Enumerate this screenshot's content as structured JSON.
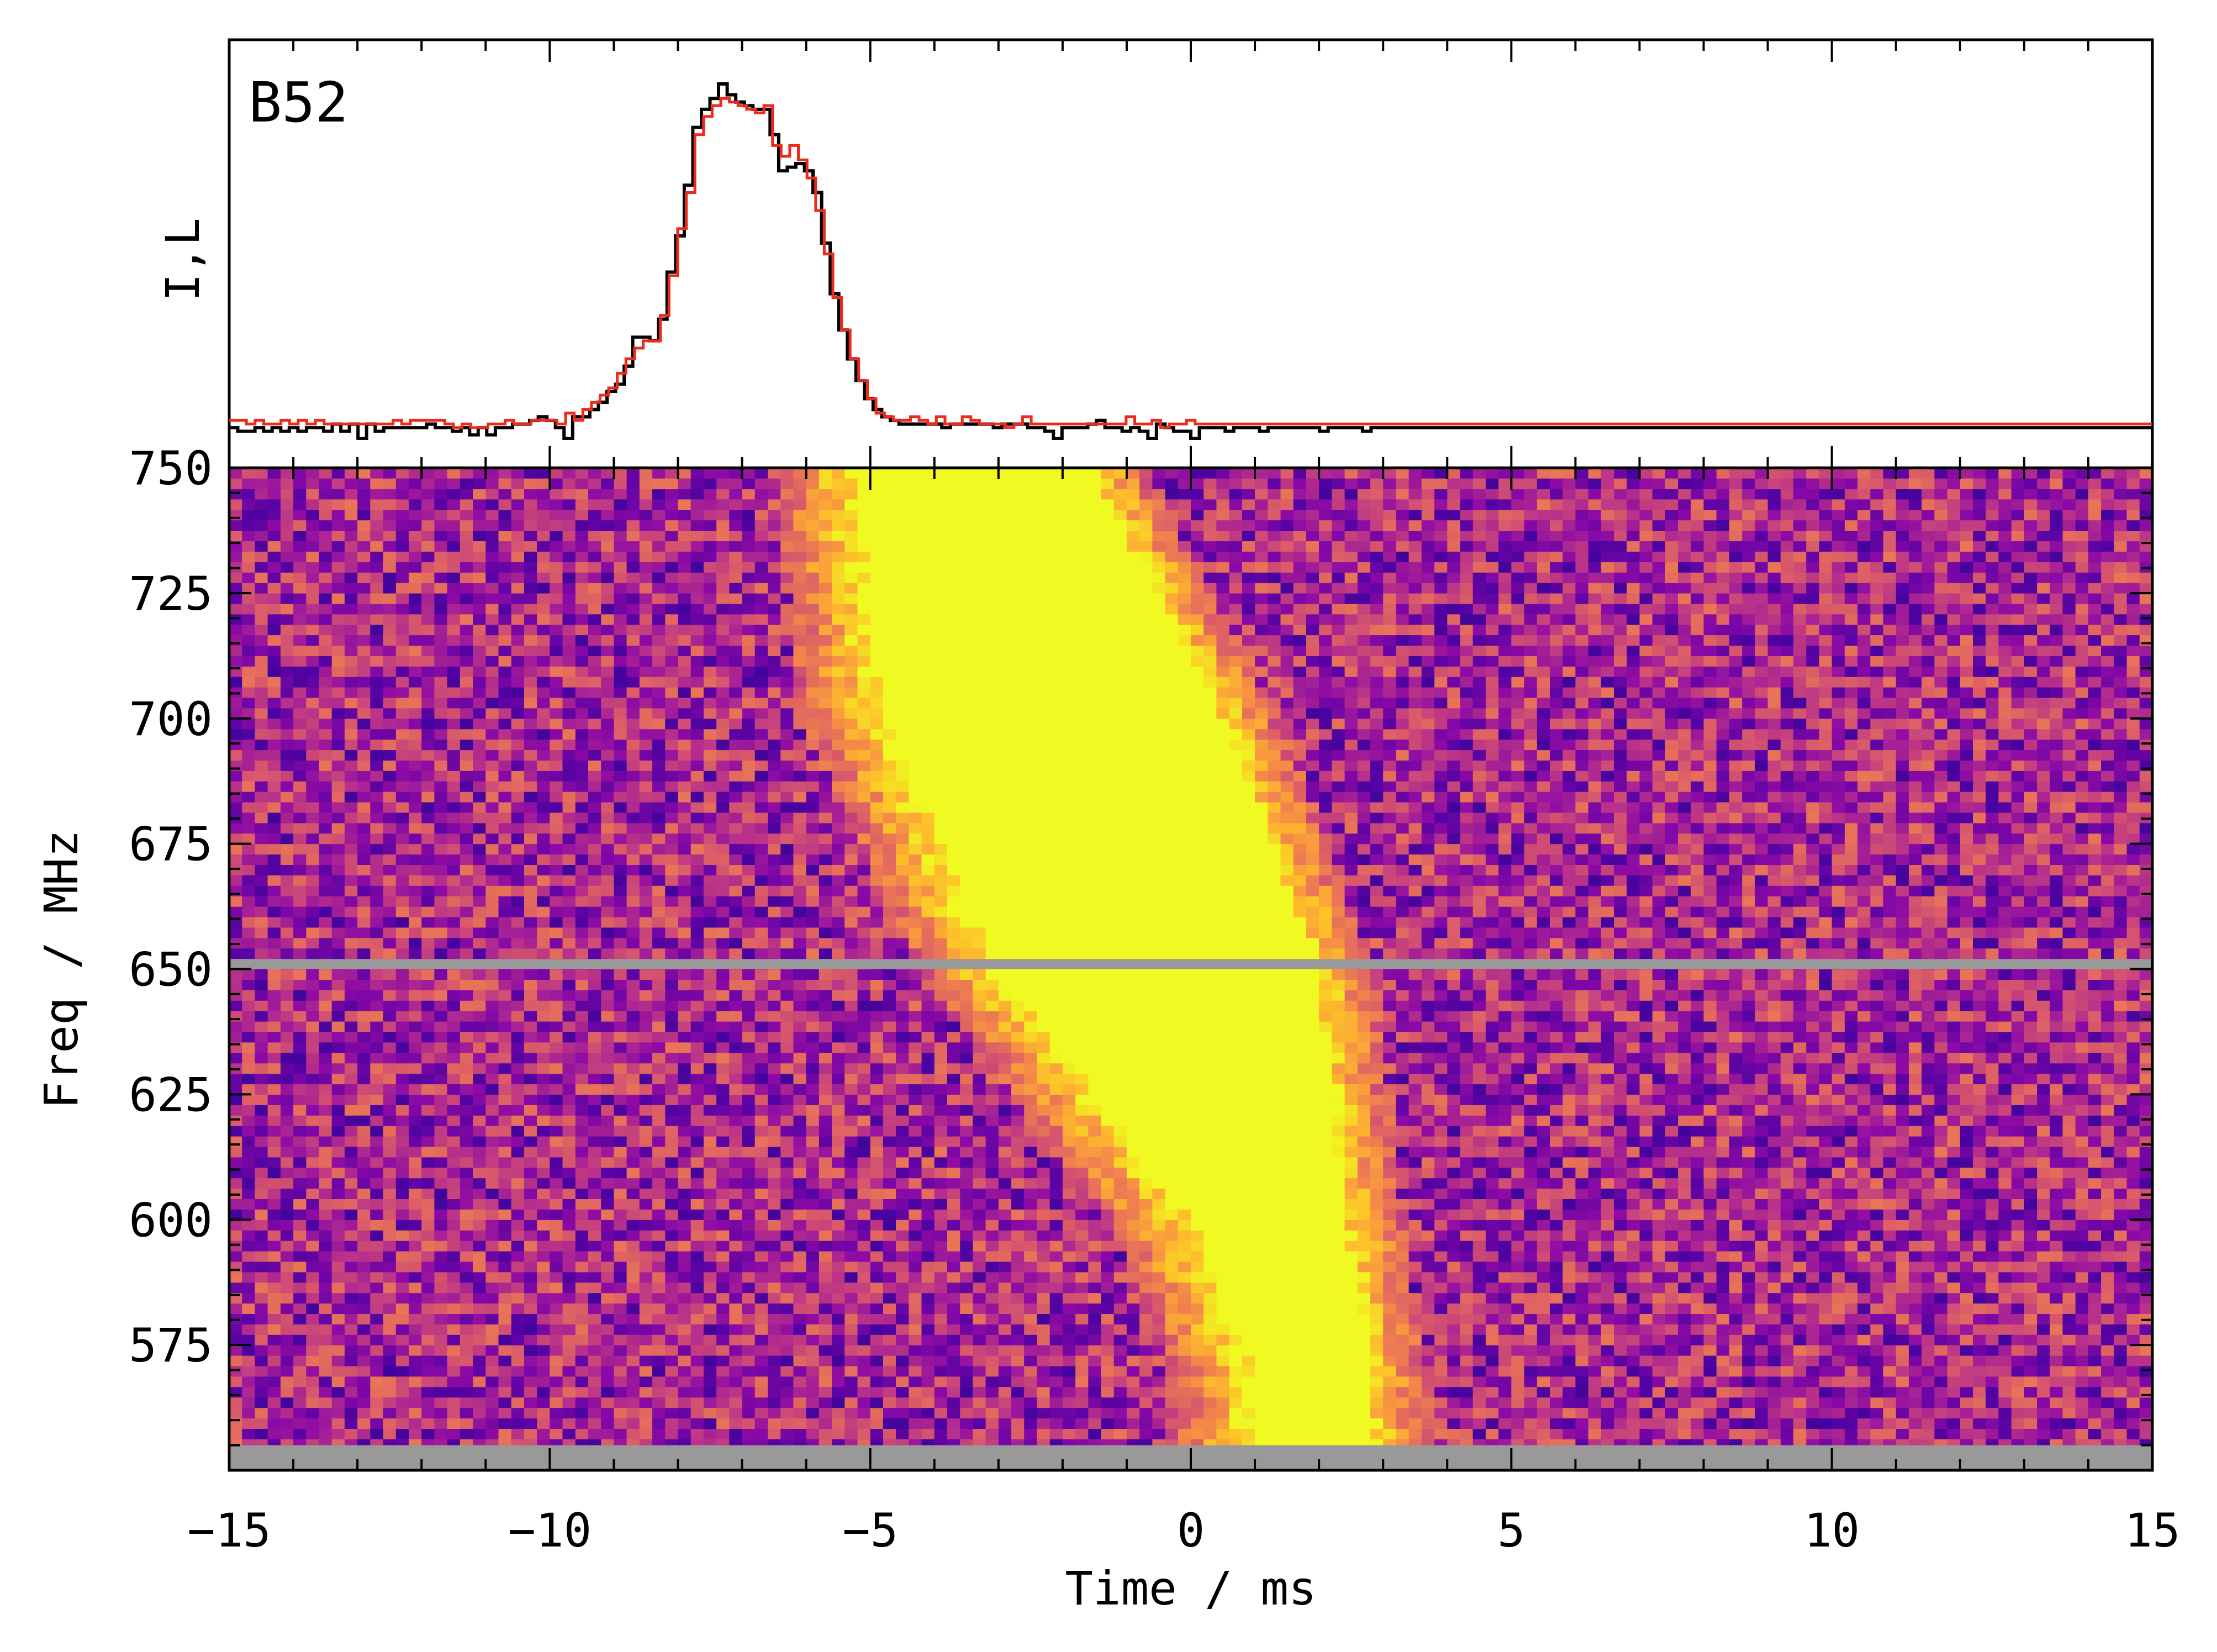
{
  "chart_data": [
    {
      "type": "line",
      "panel": "profile",
      "label": "B52",
      "ylabel": "I,L",
      "xlim": [
        -15,
        15
      ],
      "legend": "none",
      "grid": false,
      "x_step_ms": 0.5,
      "series": [
        {
          "color": "#000000",
          "values": [
            0.05,
            0.04,
            0.04,
            0.05,
            0.04,
            0.05,
            0.04,
            0.05,
            0.04,
            0.05,
            0.05,
            0.04,
            0.06,
            0.04,
            0.06,
            0.02,
            0.06,
            0.04,
            0.05,
            0.05,
            0.05,
            0.05,
            0.05,
            0.06,
            0.05,
            0.05,
            0.04,
            0.05,
            0.03,
            0.05,
            0.03,
            0.05,
            0.05,
            0.06,
            0.06,
            0.07,
            0.08,
            0.07,
            0.05,
            0.02,
            0.08,
            0.08,
            0.1,
            0.12,
            0.15,
            0.17,
            0.22,
            0.3,
            0.3,
            0.29,
            0.35,
            0.48,
            0.58,
            0.72,
            0.88,
            0.93,
            0.96,
            1.0,
            0.97,
            0.95,
            0.94,
            0.93,
            0.93,
            0.86,
            0.76,
            0.77,
            0.78,
            0.76,
            0.7,
            0.56,
            0.42,
            0.32,
            0.24,
            0.18,
            0.13,
            0.1,
            0.08,
            0.07,
            0.06,
            0.06,
            0.06,
            0.06,
            0.06,
            0.05,
            0.06,
            0.06,
            0.06,
            0.06,
            0.06,
            0.05,
            0.06,
            0.06,
            0.06,
            0.05,
            0.05,
            0.04,
            0.02,
            0.05,
            0.05,
            0.05,
            0.06,
            0.07,
            0.05,
            0.05,
            0.04,
            0.05,
            0.04,
            0.02,
            0.06,
            0.05,
            0.04,
            0.04,
            0.02,
            0.05,
            0.05,
            0.05,
            0.04,
            0.05,
            0.05,
            0.05,
            0.04,
            0.05,
            0.05,
            0.05,
            0.05,
            0.05,
            0.05,
            0.04,
            0.05,
            0.05,
            0.05,
            0.05,
            0.04,
            0.05,
            0.05,
            0.05,
            0.05,
            0.05,
            0.05,
            0.05,
            0.05,
            0.05,
            0.05,
            0.05,
            0.05,
            0.05,
            0.05,
            0.05,
            0.05,
            0.05,
            0.05,
            0.05,
            0.05,
            0.05,
            0.05,
            0.05,
            0.05,
            0.05,
            0.05,
            0.05,
            0.05,
            0.05,
            0.05,
            0.05,
            0.05,
            0.05,
            0.05,
            0.05,
            0.05,
            0.05,
            0.05,
            0.05,
            0.05,
            0.05,
            0.05,
            0.05,
            0.05,
            0.05,
            0.05,
            0.05,
            0.05,
            0.05,
            0.05,
            0.05,
            0.05,
            0.05,
            0.05,
            0.05,
            0.05,
            0.05,
            0.05,
            0.05,
            0.05,
            0.05,
            0.05,
            0.05,
            0.05,
            0.05,
            0.05,
            0.05,
            0.05,
            0.05,
            0.05,
            0.05,
            0.05,
            0.05,
            0.05,
            0.05,
            0.05,
            0.05,
            0.05,
            0.05,
            0.05,
            0.05,
            0.05,
            0.05,
            0.05,
            0.05,
            0.05,
            0.05,
            0.05,
            0.05,
            0.05,
            0.05
          ]
        },
        {
          "color": "#ee2a1a",
          "values": [
            0.07,
            0.07,
            0.06,
            0.07,
            0.06,
            0.06,
            0.07,
            0.06,
            0.07,
            0.06,
            0.07,
            0.06,
            0.06,
            0.06,
            0.06,
            0.06,
            0.06,
            0.06,
            0.06,
            0.07,
            0.06,
            0.07,
            0.07,
            0.07,
            0.07,
            0.06,
            0.05,
            0.06,
            0.05,
            0.05,
            0.06,
            0.06,
            0.07,
            0.06,
            0.06,
            0.07,
            0.07,
            0.07,
            0.06,
            0.09,
            0.07,
            0.1,
            0.12,
            0.14,
            0.16,
            0.2,
            0.24,
            0.27,
            0.29,
            0.29,
            0.36,
            0.47,
            0.6,
            0.7,
            0.86,
            0.91,
            0.94,
            0.96,
            0.95,
            0.94,
            0.93,
            0.92,
            0.94,
            0.83,
            0.8,
            0.83,
            0.79,
            0.74,
            0.65,
            0.53,
            0.41,
            0.32,
            0.24,
            0.18,
            0.13,
            0.09,
            0.08,
            0.07,
            0.07,
            0.08,
            0.07,
            0.06,
            0.08,
            0.06,
            0.06,
            0.08,
            0.07,
            0.06,
            0.06,
            0.06,
            0.05,
            0.06,
            0.08,
            0.06,
            0.06,
            0.06,
            0.06,
            0.06,
            0.06,
            0.06,
            0.06,
            0.06,
            0.06,
            0.06,
            0.08,
            0.06,
            0.06,
            0.07,
            0.05,
            0.06,
            0.06,
            0.07,
            0.06,
            0.06,
            0.06,
            0.06,
            0.06,
            0.06,
            0.06,
            0.06,
            0.06,
            0.06,
            0.06,
            0.06,
            0.06,
            0.06,
            0.06,
            0.06,
            0.06,
            0.06,
            0.06,
            0.06,
            0.06,
            0.06,
            0.06,
            0.06,
            0.06,
            0.06,
            0.06,
            0.06,
            0.06,
            0.06,
            0.06,
            0.06,
            0.06,
            0.06,
            0.06,
            0.06,
            0.06,
            0.06,
            0.06,
            0.06,
            0.06,
            0.06,
            0.06,
            0.06,
            0.06,
            0.06,
            0.06,
            0.06,
            0.06,
            0.06,
            0.06,
            0.06,
            0.06,
            0.06,
            0.06,
            0.06,
            0.06,
            0.06,
            0.06,
            0.06,
            0.06,
            0.06,
            0.06,
            0.06,
            0.06,
            0.06,
            0.06,
            0.06,
            0.06,
            0.06,
            0.06,
            0.06,
            0.06,
            0.06,
            0.06,
            0.06,
            0.06,
            0.06,
            0.06,
            0.06,
            0.06,
            0.06,
            0.06,
            0.06,
            0.06,
            0.06,
            0.06,
            0.06,
            0.06,
            0.06,
            0.06,
            0.06,
            0.06,
            0.06,
            0.06,
            0.06,
            0.06,
            0.06,
            0.06,
            0.06,
            0.06,
            0.06,
            0.06,
            0.06,
            0.06,
            0.06,
            0.06,
            0.06,
            0.06,
            0.06,
            0.06
          ]
        }
      ]
    },
    {
      "type": "heatmap",
      "panel": "dynamic-spectrum",
      "xlabel": "Time / ms",
      "ylabel": "Freq / MHz",
      "xlim": [
        -15,
        15
      ],
      "ylim": [
        550,
        750
      ],
      "xticks": [
        "−15",
        "−10",
        "−5",
        "0",
        "5",
        "10",
        "15"
      ],
      "xtick_values": [
        -15,
        -10,
        -5,
        0,
        5,
        10,
        15
      ],
      "yticks": [
        "575",
        "600",
        "625",
        "650",
        "675",
        "700",
        "725",
        "750"
      ],
      "ytick_values": [
        575,
        600,
        625,
        650,
        675,
        700,
        725,
        750
      ],
      "colormap": "plasma",
      "flagged_color": "#999999",
      "flagged_channels_mhz": [
        [
          650,
          652
        ],
        [
          550,
          555
        ]
      ],
      "burst_track": [
        {
          "freq": 748,
          "t_start": -5.2,
          "t_end": -1.5
        },
        {
          "freq": 700,
          "t_start": -4.8,
          "t_end": 0.5
        },
        {
          "freq": 650,
          "t_start": -3.0,
          "t_end": 2.0
        },
        {
          "freq": 600,
          "t_start": 0.0,
          "t_end": 2.4
        },
        {
          "freq": 570,
          "t_start": 1.0,
          "t_end": 2.8
        }
      ]
    }
  ]
}
